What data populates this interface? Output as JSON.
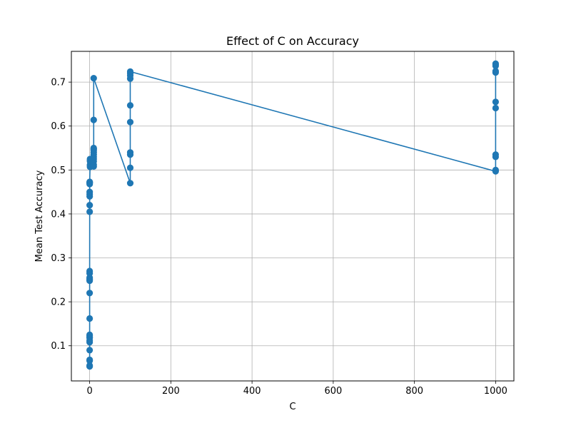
{
  "chart_data": {
    "type": "scatter",
    "title": "Effect of C on Accuracy",
    "xlabel": "C",
    "ylabel": "Mean Test Accuracy",
    "xlim": [
      -45,
      1045
    ],
    "ylim": [
      0.02,
      0.77
    ],
    "xticks": [
      0,
      200,
      400,
      600,
      800,
      1000
    ],
    "yticks": [
      0.1,
      0.2,
      0.3,
      0.4,
      0.5,
      0.6,
      0.7
    ],
    "xtick_labels": [
      "0",
      "200",
      "400",
      "600",
      "800",
      "1000"
    ],
    "ytick_labels": [
      "0.1",
      "0.2",
      "0.3",
      "0.4",
      "0.5",
      "0.6",
      "0.7"
    ],
    "grid": true,
    "series": [
      {
        "color": "#1f77b4",
        "points": [
          [
            0.001,
            0.053
          ],
          [
            0.001,
            0.055
          ],
          [
            0.001,
            0.066
          ],
          [
            0.001,
            0.068
          ],
          [
            0.001,
            0.09
          ],
          [
            0.001,
            0.108
          ],
          [
            0.001,
            0.112
          ],
          [
            0.001,
            0.118
          ],
          [
            0.001,
            0.12
          ],
          [
            0.001,
            0.123
          ],
          [
            0.001,
            0.125
          ],
          [
            0.01,
            0.162
          ],
          [
            0.01,
            0.22
          ],
          [
            0.01,
            0.248
          ],
          [
            0.01,
            0.25
          ],
          [
            0.01,
            0.252
          ],
          [
            0.01,
            0.255
          ],
          [
            0.01,
            0.265
          ],
          [
            0.01,
            0.27
          ],
          [
            0.1,
            0.405
          ],
          [
            0.1,
            0.42
          ],
          [
            0.1,
            0.44
          ],
          [
            0.1,
            0.445
          ],
          [
            0.1,
            0.45
          ],
          [
            0.1,
            0.468
          ],
          [
            0.1,
            0.47
          ],
          [
            0.1,
            0.472
          ],
          [
            0.1,
            0.473
          ],
          [
            1,
            0.507
          ],
          [
            1,
            0.51
          ],
          [
            1,
            0.512
          ],
          [
            1,
            0.52
          ],
          [
            1,
            0.522
          ],
          [
            1,
            0.525
          ],
          [
            10,
            0.508
          ],
          [
            10,
            0.512
          ],
          [
            10,
            0.52
          ],
          [
            10,
            0.525
          ],
          [
            10,
            0.53
          ],
          [
            10,
            0.535
          ],
          [
            10,
            0.54
          ],
          [
            10,
            0.545
          ],
          [
            10,
            0.548
          ],
          [
            10,
            0.55
          ],
          [
            10,
            0.614
          ],
          [
            10,
            0.709
          ],
          [
            100,
            0.47
          ],
          [
            100,
            0.505
          ],
          [
            100,
            0.535
          ],
          [
            100,
            0.54
          ],
          [
            100,
            0.609
          ],
          [
            100,
            0.647
          ],
          [
            100,
            0.708
          ],
          [
            100,
            0.715
          ],
          [
            100,
            0.72
          ],
          [
            100,
            0.724
          ],
          [
            1000,
            0.497
          ],
          [
            1000,
            0.5
          ],
          [
            1000,
            0.53
          ],
          [
            1000,
            0.535
          ],
          [
            1000,
            0.641
          ],
          [
            1000,
            0.655
          ],
          [
            1000,
            0.722
          ],
          [
            1000,
            0.725
          ],
          [
            1000,
            0.737
          ],
          [
            1000,
            0.74
          ],
          [
            1000,
            0.742
          ]
        ]
      }
    ]
  }
}
